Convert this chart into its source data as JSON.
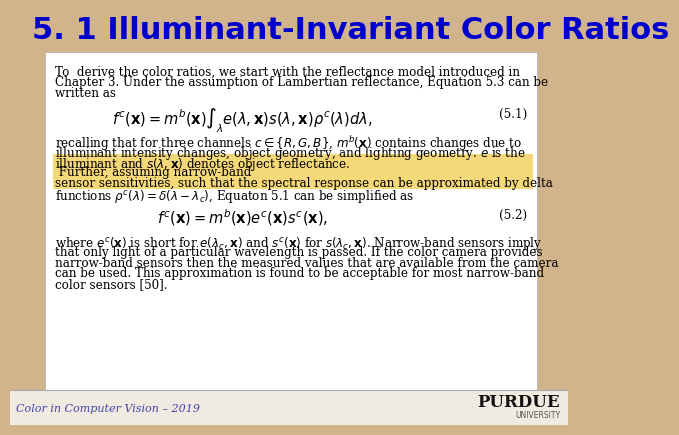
{
  "title": "5. 1 Illuminant-Invariant Color Ratios",
  "title_color": "#0000CC",
  "slide_bg": "#D2B48C",
  "content_bg": "#FFFFFF",
  "footer_text": "Color in Computer Vision – 2019",
  "footer_color": "#4444AA",
  "footer_bg": "#F0EBE0",
  "purdue_text": "PURDUE",
  "purdue_sub": "UNIVERSITY",
  "content_lines": [
    "To  derive the color ratios, we start with the reflectance model introduced in",
    "Chapter 3. Under the assumption of Lambertian reflectance, Equation 5.3 can be",
    "written as"
  ],
  "eq1": "$f^c(\\mathbf{x}) = m^b(\\mathbf{x}) \\int_\\lambda e(\\lambda, \\mathbf{x}) s(\\lambda, \\mathbf{x}) \\rho^c(\\lambda) d\\lambda,$",
  "eq1_label": "(5.1)",
  "para2_lines": [
    "recalling that for three channels $c \\in \\{R, G, B\\}$, $m^b(\\mathbf{x})$ contains changes due to",
    "illuminant intensity changes, object geometry, and lighting geometry. $e$ is the",
    "illuminant and $s(\\lambda, \\mathbf{x})$ denotes object reflectance."
  ],
  "highlight_lines": [
    " Further, assuming narrow-band",
    "sensor sensitivities, such that the spectral response can be approximated by delta",
    "functions $\\rho^c(\\lambda) = \\delta(\\lambda - \\lambda_c)$, Equaton 5.1 can be simplified as"
  ],
  "highlight_color": "#F5D878",
  "eq2": "$f^c(\\mathbf{x}) = m^b(\\mathbf{x}) e^c(\\mathbf{x}) s^c(\\mathbf{x}),$",
  "eq2_label": "(5.2)",
  "para3_lines": [
    "where $e^c(\\mathbf{x})$ is short for $e(\\lambda_c, \\mathbf{x})$ and $s^c(\\mathbf{x})$ for $s(\\lambda_c, \\mathbf{x})$. Narrow-band sensors imply",
    "that only light of a particular wavelength is passed. If the color camera provides",
    "narrow-band sensors then the measured values that are available from the camera",
    "can be used. This approximation is found to be acceptable for most narrow-band",
    "color sensors [50]."
  ]
}
